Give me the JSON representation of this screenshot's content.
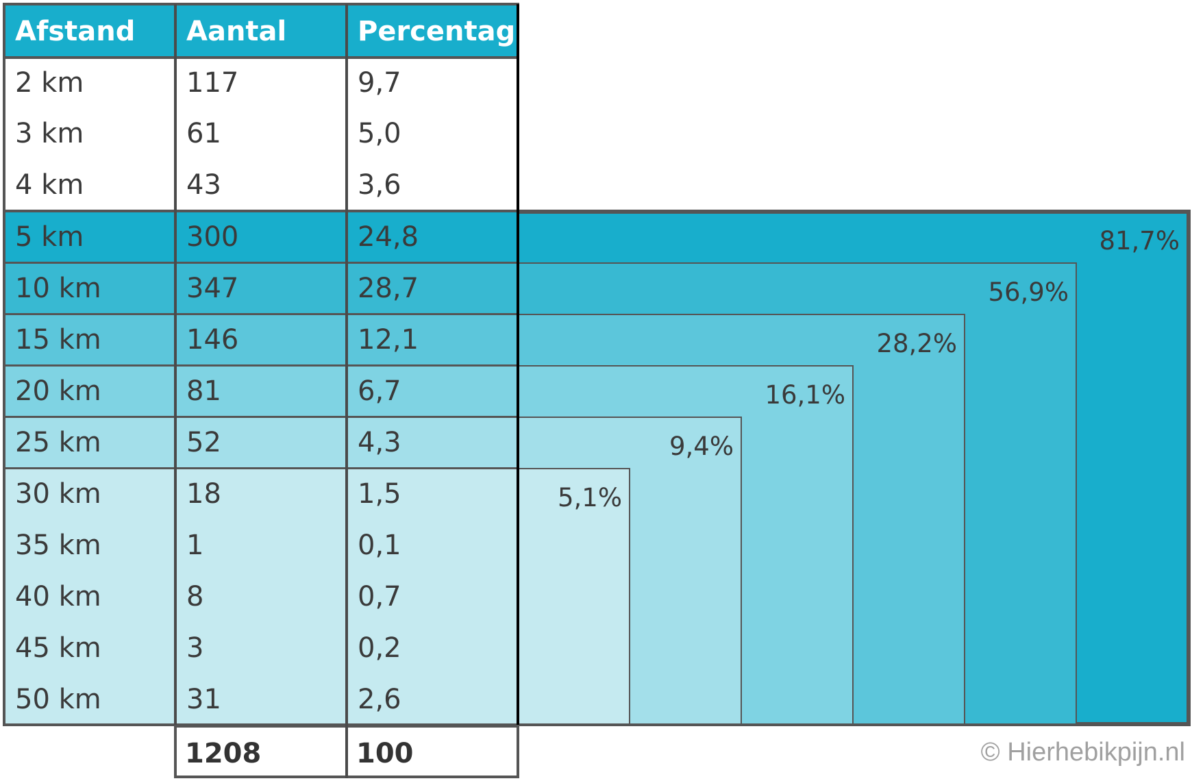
{
  "table": {
    "headers": [
      "Afstand",
      "Aantal",
      "Percentage"
    ],
    "rows": [
      {
        "afstand": "2 km",
        "aantal": "117",
        "percentage": "9,7"
      },
      {
        "afstand": "3 km",
        "aantal": "61",
        "percentage": "5,0"
      },
      {
        "afstand": "4 km",
        "aantal": "43",
        "percentage": "3,6"
      },
      {
        "afstand": "5 km",
        "aantal": "300",
        "percentage": "24,8"
      },
      {
        "afstand": "10 km",
        "aantal": "347",
        "percentage": "28,7"
      },
      {
        "afstand": "15 km",
        "aantal": "146",
        "percentage": "12,1"
      },
      {
        "afstand": "20 km",
        "aantal": "81",
        "percentage": "6,7"
      },
      {
        "afstand": "25 km",
        "aantal": "52",
        "percentage": "4,3"
      },
      {
        "afstand": "30 km",
        "aantal": "18",
        "percentage": "1,5"
      },
      {
        "afstand": "35 km",
        "aantal": "1",
        "percentage": "0,1"
      },
      {
        "afstand": "40 km",
        "aantal": "8",
        "percentage": "0,7"
      },
      {
        "afstand": "45 km",
        "aantal": "3",
        "percentage": "0,2"
      },
      {
        "afstand": "50 km",
        "aantal": "31",
        "percentage": "2,6"
      }
    ],
    "totals": {
      "aantal": "1208",
      "percentage": "100"
    }
  },
  "chart_data": {
    "type": "table",
    "columns": [
      "Afstand",
      "Aantal",
      "Percentage"
    ],
    "rows": [
      [
        "2 km",
        117,
        9.7
      ],
      [
        "3 km",
        61,
        5.0
      ],
      [
        "4 km",
        43,
        3.6
      ],
      [
        "5 km",
        300,
        24.8
      ],
      [
        "10 km",
        347,
        28.7
      ],
      [
        "15 km",
        146,
        12.1
      ],
      [
        "20 km",
        81,
        6.7
      ],
      [
        "25 km",
        52,
        4.3
      ],
      [
        "30 km",
        18,
        1.5
      ],
      [
        "35 km",
        1,
        0.1
      ],
      [
        "40 km",
        8,
        0.7
      ],
      [
        "45 km",
        3,
        0.2
      ],
      [
        "50 km",
        31,
        2.6
      ]
    ],
    "totals": {
      "Aantal": 1208,
      "Percentage": 100
    },
    "cumulative": [
      {
        "from": "5 km",
        "label": "81,7%",
        "value": 81.7
      },
      {
        "from": "10 km",
        "label": "56,9%",
        "value": 56.9
      },
      {
        "from": "15 km",
        "label": "28,2%",
        "value": 28.2
      },
      {
        "from": "20 km",
        "label": "16,1%",
        "value": 16.1
      },
      {
        "from": "25 km",
        "label": "9,4%",
        "value": 9.4
      },
      {
        "from": "30 km",
        "label": "5,1%",
        "value": 5.1
      }
    ]
  },
  "colors": {
    "header": "#18aecc",
    "levels": [
      "#18aecc",
      "#38b9d2",
      "#5cc6db",
      "#7fd3e3",
      "#a3dfea",
      "#c5eaf0"
    ]
  },
  "watermark": "© Hierhebikpijn.nl"
}
